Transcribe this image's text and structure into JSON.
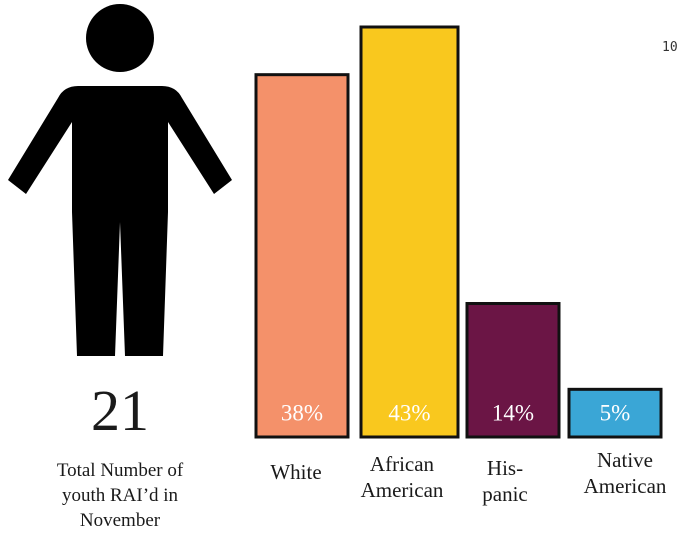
{
  "summary": {
    "total_value": "21",
    "caption_lines": [
      "Total Number of",
      "youth RAI’d in",
      "November"
    ]
  },
  "chart_data": {
    "type": "bar",
    "categories": [
      [
        "White"
      ],
      [
        "African",
        "American"
      ],
      [
        "His-",
        "panic"
      ],
      [
        "Native",
        "American"
      ]
    ],
    "values": [
      38,
      43,
      14,
      5
    ],
    "value_labels": [
      "38%",
      "43%",
      "14%",
      "5%"
    ],
    "colors": [
      "#f4916a",
      "#f9c81e",
      "#6b1545",
      "#3aa6d6"
    ],
    "bar_outline": "#111111",
    "ylim": [
      0,
      43
    ],
    "grid": false,
    "legend": "none"
  },
  "side_note": "10"
}
